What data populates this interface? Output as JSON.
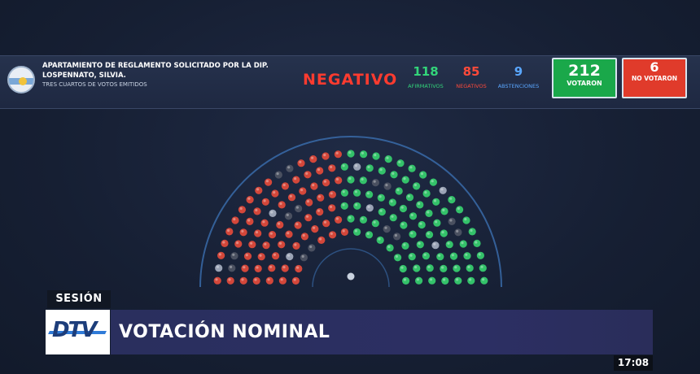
{
  "header": {
    "motion_title": "APARTAMIENTO DE REGLAMENTO SOLICITADO POR LA DIP. LOSPENNATO, SILVIA.",
    "majority_rule": "TRES CUARTOS DE VOTOS EMITIDOS",
    "result": "NEGATIVO",
    "counts": [
      {
        "key": "afirmativos",
        "value": "118",
        "label": "AFIRMATIVOS",
        "color": "#33d47a"
      },
      {
        "key": "negativos",
        "value": "85",
        "label": "NEGATIVOS",
        "color": "#ff4a3a"
      },
      {
        "key": "abstenciones",
        "value": "9",
        "label": "ABSTENCIONES",
        "color": "#5aa7ff"
      }
    ],
    "voted": {
      "value": "212",
      "label": "VOTARON",
      "color": "#1aa84a"
    },
    "not_voted": {
      "value": "6",
      "label": "NO VOTARON",
      "color": "#e03b2b"
    }
  },
  "chamber": {
    "total_seats": 257,
    "colors": {
      "afirmativo": "#34c26a",
      "negativo": "#d4473a",
      "abstencion": "#9aa3b5",
      "ausente": "#4a5060",
      "presidente": "#c9d2df"
    }
  },
  "lower_third": {
    "section": "SESIÓN",
    "title": "VOTACIÓN NOMINAL",
    "logo_text": "DTV"
  },
  "clock": "17:08"
}
